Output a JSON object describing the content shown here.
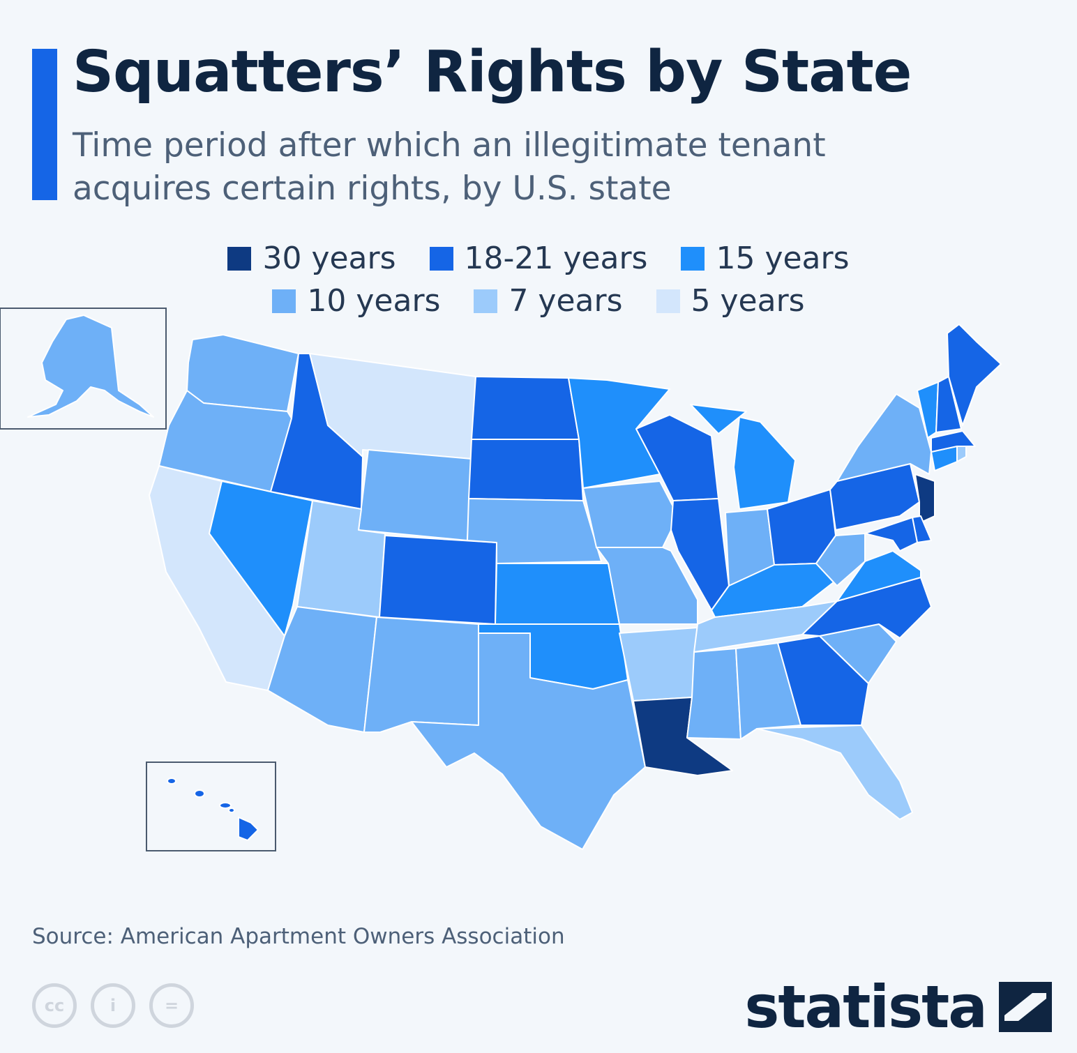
{
  "header": {
    "title": "Squatters’ Rights by State",
    "subtitle": "Time period after which an illegitimate tenant acquires certain rights, by U.S. state"
  },
  "legend": [
    {
      "label": "30 years",
      "color": "#0e3a82"
    },
    {
      "label": "18-21 years",
      "color": "#1565e6"
    },
    {
      "label": "15 years",
      "color": "#1f8ffb"
    },
    {
      "label": "10 years",
      "color": "#6eb0f7"
    },
    {
      "label": "7 years",
      "color": "#9ccbfb"
    },
    {
      "label": "5 years",
      "color": "#d3e6fc"
    }
  ],
  "map_data": {
    "categories": [
      "30 years",
      "18-21 years",
      "15 years",
      "10 years",
      "7 years",
      "5 years"
    ],
    "states": {
      "WA": "10 years",
      "OR": "10 years",
      "CA": "5 years",
      "NV": "15 years",
      "ID": "18-21 years",
      "MT": "5 years",
      "WY": "10 years",
      "UT": "7 years",
      "AZ": "10 years",
      "CO": "18-21 years",
      "NM": "10 years",
      "ND": "18-21 years",
      "SD": "18-21 years",
      "NE": "10 years",
      "KS": "15 years",
      "OK": "15 years",
      "TX": "10 years",
      "MN": "15 years",
      "IA": "10 years",
      "MO": "10 years",
      "AR": "7 years",
      "LA": "30 years",
      "WI": "18-21 years",
      "IL": "18-21 years",
      "MI": "15 years",
      "IN": "10 years",
      "OH": "18-21 years",
      "KY": "15 years",
      "TN": "7 years",
      "MS": "10 years",
      "AL": "10 years",
      "GA": "18-21 years",
      "FL": "7 years",
      "SC": "10 years",
      "NC": "18-21 years",
      "VA": "15 years",
      "WV": "10 years",
      "PA": "18-21 years",
      "NY": "10 years",
      "NJ": "30 years",
      "DE": "18-21 years",
      "MD": "18-21 years",
      "CT": "15 years",
      "RI": "7 years",
      "MA": "18-21 years",
      "VT": "15 years",
      "NH": "18-21 years",
      "ME": "18-21 years",
      "AK": "10 years",
      "HI": "18-21 years"
    }
  },
  "footer": {
    "source": "Source: American Apartment Owners Association",
    "cc_labels": [
      "cc",
      "i",
      "="
    ],
    "brand": "statista"
  }
}
